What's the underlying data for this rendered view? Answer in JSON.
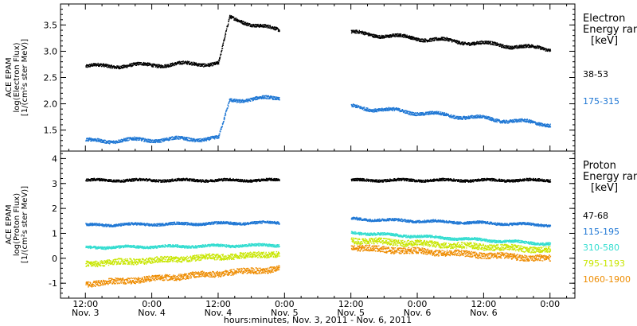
{
  "chart_data": [
    {
      "type": "scatter",
      "panel": "electron",
      "ylabel_lines": [
        "ACE EPAM",
        "log(Electron Flux)",
        "[1/(cm²s ster MeV)]"
      ],
      "legend_title_lines": [
        "Electron",
        "Energy ranges",
        "[keV]"
      ],
      "ylim": [
        1.1,
        3.9
      ],
      "yticks": [
        1.5,
        2.0,
        2.5,
        3.0,
        3.5
      ],
      "ytick_labels": [
        "1.5",
        "2.0",
        "2.5",
        "3.0",
        "3.5"
      ],
      "series": [
        {
          "name": "38-53",
          "color": "#000000",
          "segments": [
            {
              "x": [
                0,
                24
              ],
              "y": [
                2.72,
                2.78
              ]
            },
            {
              "x": [
                24,
                25
              ],
              "y": [
                2.78,
                3.2
              ]
            },
            {
              "x": [
                25,
                26
              ],
              "y": [
                3.2,
                3.64
              ]
            },
            {
              "x": [
                26,
                35
              ],
              "y": [
                3.64,
                3.4
              ]
            },
            {
              "x": [
                48,
                84
              ],
              "y": [
                3.36,
                3.05
              ]
            }
          ]
        },
        {
          "name": "175-315",
          "color": "#1f77d4",
          "segments": [
            {
              "x": [
                0,
                24
              ],
              "y": [
                1.3,
                1.35
              ]
            },
            {
              "x": [
                24,
                25
              ],
              "y": [
                1.35,
                1.7
              ]
            },
            {
              "x": [
                25,
                26
              ],
              "y": [
                1.7,
                2.08
              ]
            },
            {
              "x": [
                26,
                35
              ],
              "y": [
                2.08,
                2.12
              ]
            },
            {
              "x": [
                48,
                84
              ],
              "y": [
                1.95,
                1.62
              ]
            }
          ]
        }
      ]
    },
    {
      "type": "scatter",
      "panel": "proton",
      "ylabel_lines": [
        "ACE EPAM",
        "log(Proton Flux)",
        "[1/(cm²s ster MeV)]"
      ],
      "legend_title_lines": [
        "Proton",
        "Energy ranges",
        "[keV]"
      ],
      "ylim": [
        -1.6,
        4.3
      ],
      "yticks": [
        -1,
        0,
        1,
        2,
        3,
        4
      ],
      "ytick_labels": [
        "-1",
        "0",
        "1",
        "2",
        "3",
        "4"
      ],
      "series": [
        {
          "name": "47-68",
          "color": "#000000",
          "segments": [
            {
              "x": [
                0,
                35
              ],
              "y": [
                3.15,
                3.15
              ]
            },
            {
              "x": [
                48,
                84
              ],
              "y": [
                3.15,
                3.15
              ]
            }
          ]
        },
        {
          "name": "115-195",
          "color": "#1f77d4",
          "segments": [
            {
              "x": [
                0,
                35
              ],
              "y": [
                1.35,
                1.45
              ]
            },
            {
              "x": [
                48,
                84
              ],
              "y": [
                1.6,
                1.35
              ]
            }
          ]
        },
        {
          "name": "310-580",
          "color": "#33ddd0",
          "segments": [
            {
              "x": [
                0,
                35
              ],
              "y": [
                0.45,
                0.55
              ]
            },
            {
              "x": [
                48,
                84
              ],
              "y": [
                1.05,
                0.6
              ]
            }
          ]
        },
        {
          "name": "795-1193",
          "color": "#c8e600",
          "segments": [
            {
              "x": [
                0,
                35
              ],
              "y": [
                -0.2,
                0.2
              ]
            },
            {
              "x": [
                48,
                84
              ],
              "y": [
                0.75,
                0.35
              ]
            }
          ]
        },
        {
          "name": "1060-1900",
          "color": "#ee8c00",
          "segments": [
            {
              "x": [
                0,
                35
              ],
              "y": [
                -1.0,
                -0.4
              ]
            },
            {
              "x": [
                48,
                84
              ],
              "y": [
                0.45,
                0.0
              ]
            }
          ]
        }
      ]
    }
  ],
  "x_axis": {
    "xlim": [
      -4.5,
      88.5
    ],
    "ticks": [
      0,
      12,
      24,
      36,
      48,
      60,
      72,
      84
    ],
    "tick_labels": [
      "12:00",
      "0:00",
      "12:00",
      "0:00",
      "12:00",
      "0:00",
      "12:00",
      "0:00"
    ],
    "tick_sublabels": [
      "Nov. 3",
      "Nov. 4",
      "Nov. 4",
      "Nov. 5",
      "Nov. 5",
      "Nov. 6",
      "Nov. 6",
      ""
    ],
    "label_major": [
      -4.5,
      12,
      24,
      36,
      48,
      60,
      72,
      84
    ],
    "xlabel": "hours:minutes, Nov. 3, 2011 - Nov. 6, 2011"
  }
}
